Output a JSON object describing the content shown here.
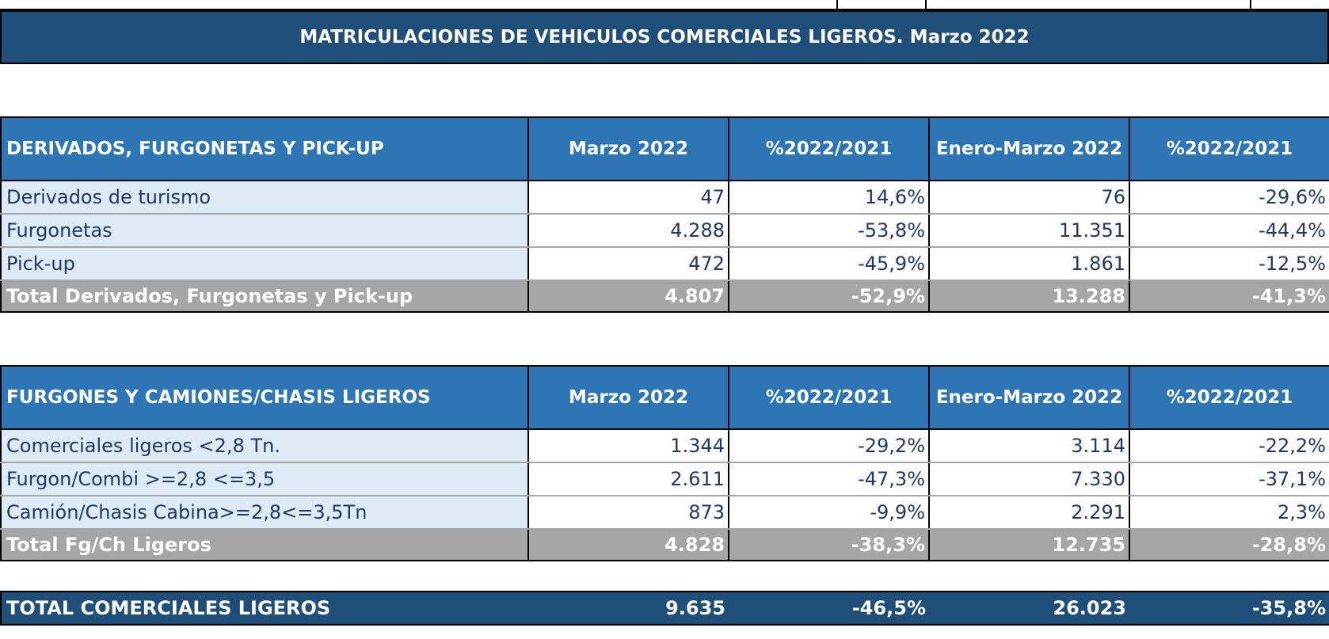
{
  "title": "MATRICULACIONES DE VEHICULOS COMERCIALES LIGEROS. Marzo 2022",
  "colors": {
    "title_bg": "#1f4e79",
    "header_bg": "#2e75b6",
    "label_bg": "#ddebf7",
    "total_bg": "#a6a6a6",
    "text": "#1f3864"
  },
  "table1": {
    "headers": [
      "DERIVADOS, FURGONETAS Y PICK-UP",
      "Marzo 2022",
      "%2022/2021",
      "Enero-Marzo 2022",
      "%2022/2021"
    ],
    "rows": [
      [
        "Derivados de turismo",
        "47",
        "14,6%",
        "76",
        "-29,6%"
      ],
      [
        "Furgonetas",
        "4.288",
        "-53,8%",
        "11.351",
        "-44,4%"
      ],
      [
        "Pick-up",
        "472",
        "-45,9%",
        "1.861",
        "-12,5%"
      ]
    ],
    "total": [
      "Total Derivados, Furgonetas y Pick-up",
      "4.807",
      "-52,9%",
      "13.288",
      "-41,3%"
    ]
  },
  "table2": {
    "headers": [
      "FURGONES Y CAMIONES/CHASIS LIGEROS",
      "Marzo 2022",
      "%2022/2021",
      "Enero-Marzo 2022",
      "%2022/2021"
    ],
    "rows": [
      [
        "Comerciales ligeros <2,8 Tn.",
        "1.344",
        "-29,2%",
        "3.114",
        "-22,2%"
      ],
      [
        "Furgon/Combi >=2,8 <=3,5",
        "2.611",
        "-47,3%",
        "7.330",
        "-37,1%"
      ],
      [
        "Camión/Chasis Cabina>=2,8<=3,5Tn",
        "873",
        "-9,9%",
        "2.291",
        "2,3%"
      ]
    ],
    "total": [
      "Total Fg/Ch Ligeros",
      "4.828",
      "-38,3%",
      "12.735",
      "-28,8%"
    ]
  },
  "grand_total": [
    "TOTAL COMERCIALES LIGEROS",
    "9.635",
    "-46,5%",
    "26.023",
    "-35,8%"
  ]
}
